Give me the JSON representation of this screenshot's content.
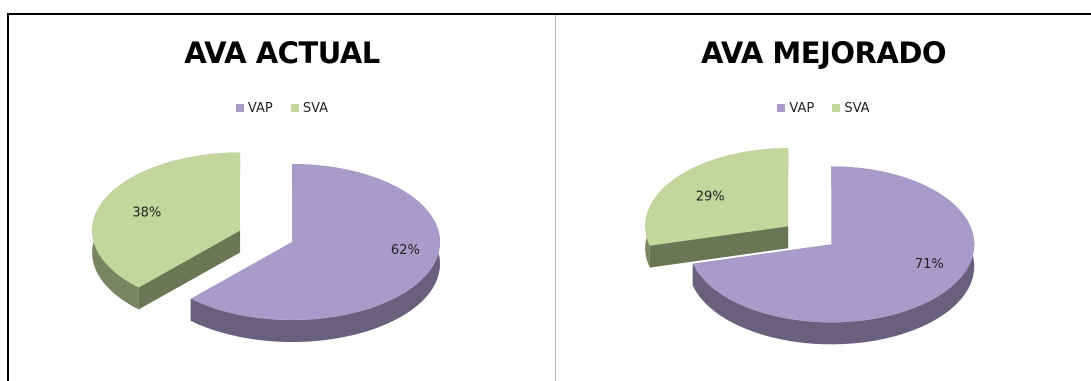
{
  "chart_data": [
    {
      "type": "pie",
      "title": "AVA ACTUAL",
      "categories": [
        "VAP",
        "SVA"
      ],
      "values": [
        62,
        38
      ],
      "data_labels": [
        "62%",
        "38%"
      ],
      "colors": [
        "#a99bc9",
        "#c3d69b"
      ],
      "exploded": true,
      "style": "3d",
      "legend_position": "top"
    },
    {
      "type": "pie",
      "title": "AVA MEJORADO",
      "categories": [
        "VAP",
        "SVA"
      ],
      "values": [
        71,
        29
      ],
      "data_labels": [
        "71%",
        "29%"
      ],
      "colors": [
        "#a99bc9",
        "#c3d69b"
      ],
      "exploded": true,
      "style": "3d",
      "legend_position": "top"
    }
  ]
}
